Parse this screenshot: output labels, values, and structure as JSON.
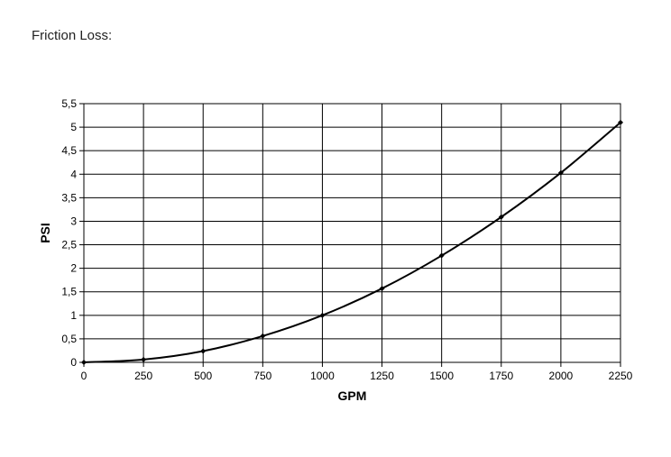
{
  "page": {
    "heading": "Friction Loss:"
  },
  "chart_data": {
    "type": "line",
    "title": "",
    "xlabel": "GPM",
    "ylabel": "PSI",
    "x_ticks": [
      "0",
      "250",
      "500",
      "750",
      "1000",
      "1250",
      "1500",
      "1750",
      "2000",
      "2250"
    ],
    "y_ticks": [
      "0",
      "0,5",
      "1",
      "1,5",
      "2",
      "2,5",
      "3",
      "3,5",
      "4",
      "4,5",
      "5",
      "5,5"
    ],
    "xlim": [
      0,
      2250
    ],
    "ylim": [
      0,
      5.5
    ],
    "grid": true,
    "legend": "none",
    "series": [
      {
        "x": [
          0,
          250,
          500,
          750,
          1000,
          1250,
          1500,
          1750,
          2000,
          2250
        ],
        "y": [
          0,
          0.06,
          0.24,
          0.56,
          1.0,
          1.57,
          2.27,
          3.09,
          4.03,
          5.1
        ],
        "color": "#000000",
        "marker": "diamond"
      }
    ]
  }
}
